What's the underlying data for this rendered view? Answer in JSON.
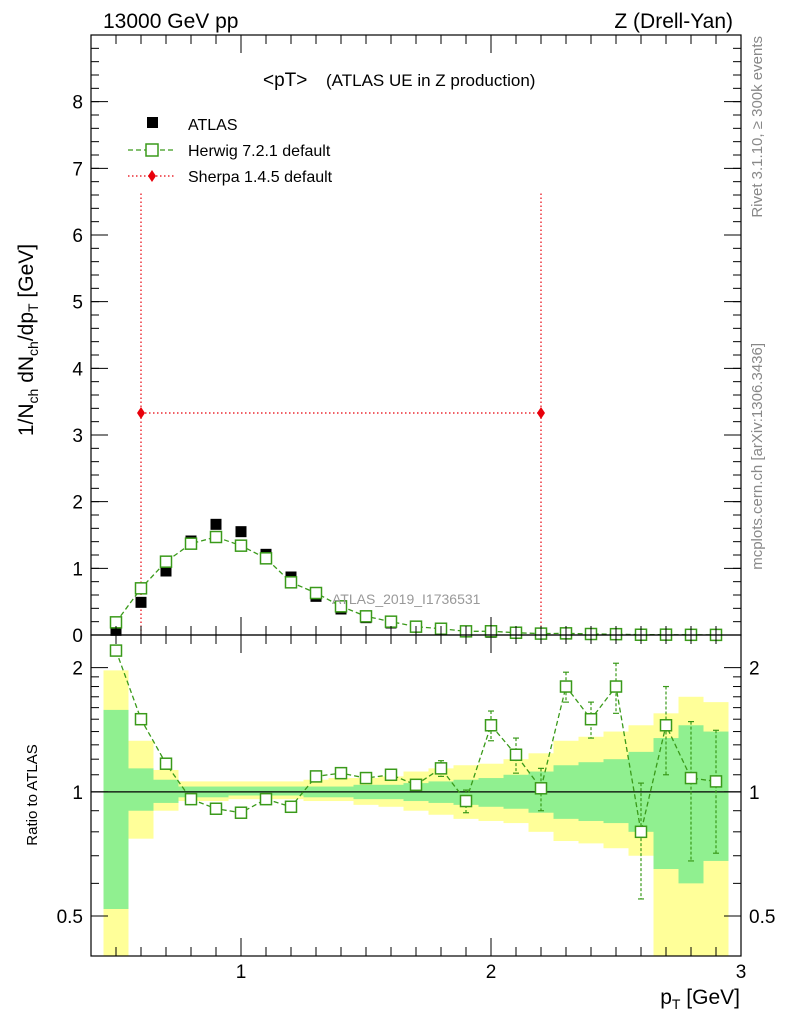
{
  "header": {
    "left": "13000 GeV pp",
    "right": "Z (Drell-Yan)"
  },
  "side_labels": {
    "rivet": "Rivet 3.1.10, ≥ 300k events",
    "mcplots": "mcplots.cern.ch [arXiv:1306.3436]"
  },
  "main_panel": {
    "title_main": "<pT>",
    "title_sub": "(ATLAS UE in Z production)",
    "ylabel": {
      "a": "1/N",
      "b": "ch",
      "c": " dN",
      "d": "ch",
      "e": "/dp",
      "f": "T",
      "g": " [GeV]"
    },
    "watermark": "ATLAS_2019_I1736531",
    "y_ticks": [
      "0",
      "1",
      "2",
      "3",
      "4",
      "5",
      "6",
      "7",
      "8"
    ]
  },
  "ratio_panel": {
    "ylabel": "Ratio to ATLAS",
    "y_ticks_left": [
      "0.5",
      "1",
      "2"
    ],
    "y_ticks_right": [
      "0.5",
      "1",
      "2"
    ]
  },
  "x_axis": {
    "label_main": "p",
    "label_sub": "T",
    "label_unit": " [GeV]",
    "ticks": [
      "1",
      "2",
      "3"
    ]
  },
  "legend": {
    "atlas": "ATLAS",
    "herwig": "Herwig 7.2.1 default",
    "sherpa": "Sherpa 1.4.5 default"
  },
  "colors": {
    "data": "#000000",
    "herwig": "#3a9a1a",
    "sherpa": "#e8000b",
    "band_inner": "#90f090",
    "band_outer": "#ffff99"
  },
  "chart_data": {
    "type": "scatter",
    "xlabel": "pT [GeV]",
    "ylabel": "1/Nch dNch/dpT [GeV]",
    "xlim": [
      0.4,
      3.0
    ],
    "ylim": [
      0,
      9
    ],
    "ratio_ylim": [
      0.4,
      2.4
    ],
    "x": [
      0.5,
      0.6,
      0.7,
      0.8,
      0.9,
      1.0,
      1.1,
      1.2,
      1.3,
      1.4,
      1.5,
      1.6,
      1.7,
      1.8,
      1.9,
      2.0,
      2.1,
      2.2,
      2.3,
      2.4,
      2.5,
      2.6,
      2.7,
      2.8,
      2.9
    ],
    "series": [
      {
        "name": "ATLAS",
        "values": [
          0.07,
          0.49,
          0.96,
          1.41,
          1.66,
          1.55,
          1.21,
          0.87,
          0.58,
          0.39,
          0.26,
          0.18,
          0.12,
          0.082,
          0.057,
          0.04,
          0.028,
          0.02,
          0.014,
          0.01,
          0.007,
          0.005,
          0.0035,
          0.0025,
          0.0018
        ]
      },
      {
        "name": "Herwig 7.2.1 default",
        "values": [
          0.19,
          0.7,
          1.1,
          1.37,
          1.47,
          1.34,
          1.15,
          0.79,
          0.63,
          0.43,
          0.28,
          0.2,
          0.125,
          0.094,
          0.055,
          0.056,
          0.034,
          0.021,
          0.025,
          0.015,
          0.0125,
          0.004,
          0.005,
          0.0027,
          0.0019
        ],
        "ratio": [
          2.2,
          1.5,
          1.17,
          0.96,
          0.91,
          0.89,
          0.96,
          0.92,
          1.09,
          1.11,
          1.08,
          1.1,
          1.04,
          1.14,
          0.95,
          1.45,
          1.23,
          1.02,
          1.8,
          1.5,
          1.8,
          0.8,
          1.45,
          1.08,
          1.06
        ],
        "ratio_err": [
          0.03,
          0.02,
          0.02,
          0.01,
          0.01,
          0.01,
          0.01,
          0.01,
          0.01,
          0.02,
          0.02,
          0.03,
          0.03,
          0.05,
          0.06,
          0.12,
          0.12,
          0.12,
          0.15,
          0.15,
          0.25,
          0.25,
          0.35,
          0.4,
          0.35
        ]
      },
      {
        "name": "Sherpa 1.4.5 default",
        "points": [
          {
            "x": 0.6,
            "y": 3.33
          },
          {
            "x": 2.2,
            "y": 3.33
          }
        ],
        "y_err": 3.33
      }
    ],
    "bands": {
      "edges": [
        0.45,
        0.55,
        0.65,
        0.75,
        0.85,
        0.95,
        1.05,
        1.15,
        1.25,
        1.35,
        1.45,
        1.55,
        1.65,
        1.75,
        1.85,
        1.95,
        2.05,
        2.15,
        2.25,
        2.35,
        2.45,
        2.55,
        2.65,
        2.75,
        2.85,
        2.95
      ],
      "inner_low": [
        0.52,
        0.9,
        0.94,
        0.97,
        0.97,
        0.98,
        0.98,
        0.98,
        0.97,
        0.97,
        0.96,
        0.96,
        0.95,
        0.94,
        0.93,
        0.92,
        0.91,
        0.89,
        0.86,
        0.85,
        0.84,
        0.8,
        0.65,
        0.6,
        0.68
      ],
      "inner_high": [
        1.58,
        1.14,
        1.07,
        1.03,
        1.03,
        1.03,
        1.03,
        1.03,
        1.03,
        1.03,
        1.04,
        1.04,
        1.05,
        1.06,
        1.07,
        1.08,
        1.1,
        1.12,
        1.16,
        1.18,
        1.2,
        1.25,
        1.35,
        1.45,
        1.4
      ],
      "outer_low": [
        0.3,
        0.77,
        0.9,
        0.95,
        0.95,
        0.96,
        0.96,
        0.96,
        0.95,
        0.95,
        0.93,
        0.92,
        0.9,
        0.88,
        0.86,
        0.85,
        0.84,
        0.8,
        0.76,
        0.75,
        0.73,
        0.7,
        0.3,
        0.3,
        0.3
      ],
      "outer_high": [
        1.97,
        1.33,
        1.13,
        1.06,
        1.06,
        1.06,
        1.06,
        1.06,
        1.07,
        1.08,
        1.08,
        1.09,
        1.12,
        1.14,
        1.16,
        1.17,
        1.2,
        1.24,
        1.33,
        1.36,
        1.4,
        1.45,
        1.55,
        1.7,
        1.65
      ]
    }
  }
}
